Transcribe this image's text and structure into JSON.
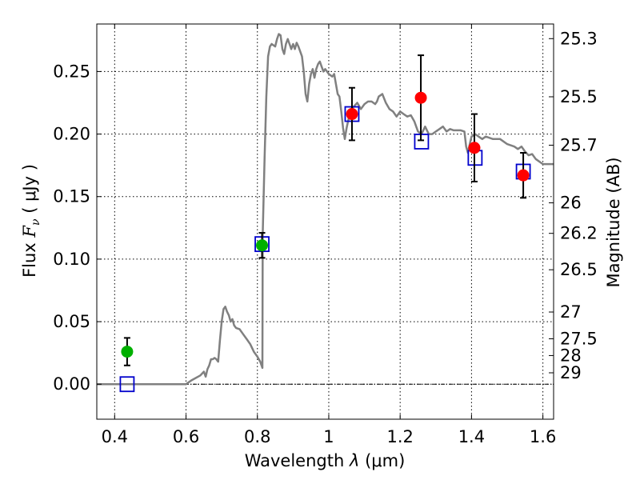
{
  "chart_data": {
    "type": "scatter",
    "xlabel_prefix": "Wavelength",
    "xlabel_symbol": "λ",
    "xlabel_unit": "(μm)",
    "ylabel_prefix": "Flux",
    "ylabel_symbol_main": "F",
    "ylabel_symbol_sub": "ν",
    "ylabel_unit": "( μJy )",
    "y2label": "Magnitude (AB)",
    "xlim": [
      0.35,
      1.63
    ],
    "ylim": [
      -0.028,
      0.288
    ],
    "x_ticks": [
      {
        "value": 0.4,
        "label": "0.4"
      },
      {
        "value": 0.6,
        "label": "0.6"
      },
      {
        "value": 0.8,
        "label": "0.8"
      },
      {
        "value": 1.0,
        "label": "1"
      },
      {
        "value": 1.2,
        "label": "1.2"
      },
      {
        "value": 1.4,
        "label": "1.4"
      },
      {
        "value": 1.6,
        "label": "1.6"
      }
    ],
    "y_ticks": [
      {
        "value": 0.0,
        "label": "0.00"
      },
      {
        "value": 0.05,
        "label": "0.05"
      },
      {
        "value": 0.1,
        "label": "0.10"
      },
      {
        "value": 0.15,
        "label": "0.15"
      },
      {
        "value": 0.2,
        "label": "0.20"
      },
      {
        "value": 0.25,
        "label": "0.25"
      }
    ],
    "mag_ticks": [
      {
        "label": "25.3",
        "flux": 0.2763
      },
      {
        "label": "25.5",
        "flux": 0.2298
      },
      {
        "label": "25.7",
        "flux": 0.1911
      },
      {
        "label": "26",
        "flux": 0.145
      },
      {
        "label": "26.2",
        "flux": 0.1206
      },
      {
        "label": "26.5",
        "flux": 0.0915
      },
      {
        "label": "27",
        "flux": 0.0577
      },
      {
        "label": "27.5",
        "flux": 0.0363
      },
      {
        "label": "28",
        "flux": 0.0229
      },
      {
        "label": "29",
        "flux": 0.0091
      }
    ],
    "grid": true,
    "colors": {
      "model": "#808080",
      "green_points": "#00b000",
      "red_points": "#ff0000",
      "model_boxes": "#0000cc",
      "errorbar": "#000000",
      "zero_line": "#000000"
    },
    "series": [
      {
        "name": "model spectrum",
        "kind": "line",
        "points": [
          [
            0.35,
            0.0
          ],
          [
            0.6,
            0.0
          ],
          [
            0.615,
            0.003
          ],
          [
            0.64,
            0.007
          ],
          [
            0.65,
            0.01
          ],
          [
            0.655,
            0.006
          ],
          [
            0.66,
            0.012
          ],
          [
            0.665,
            0.015
          ],
          [
            0.67,
            0.02
          ],
          [
            0.675,
            0.02
          ],
          [
            0.68,
            0.021
          ],
          [
            0.685,
            0.02
          ],
          [
            0.69,
            0.018
          ],
          [
            0.695,
            0.035
          ],
          [
            0.7,
            0.05
          ],
          [
            0.705,
            0.06
          ],
          [
            0.71,
            0.062
          ],
          [
            0.715,
            0.058
          ],
          [
            0.72,
            0.055
          ],
          [
            0.725,
            0.05
          ],
          [
            0.73,
            0.052
          ],
          [
            0.735,
            0.047
          ],
          [
            0.74,
            0.045
          ],
          [
            0.75,
            0.044
          ],
          [
            0.76,
            0.04
          ],
          [
            0.77,
            0.036
          ],
          [
            0.78,
            0.032
          ],
          [
            0.79,
            0.026
          ],
          [
            0.8,
            0.022
          ],
          [
            0.808,
            0.018
          ],
          [
            0.814,
            0.013
          ],
          [
            0.815,
            0.12
          ],
          [
            0.82,
            0.18
          ],
          [
            0.825,
            0.23
          ],
          [
            0.83,
            0.262
          ],
          [
            0.835,
            0.27
          ],
          [
            0.84,
            0.272
          ],
          [
            0.85,
            0.27
          ],
          [
            0.855,
            0.276
          ],
          [
            0.86,
            0.28
          ],
          [
            0.865,
            0.279
          ],
          [
            0.87,
            0.268
          ],
          [
            0.875,
            0.264
          ],
          [
            0.88,
            0.272
          ],
          [
            0.885,
            0.276
          ],
          [
            0.89,
            0.272
          ],
          [
            0.895,
            0.268
          ],
          [
            0.9,
            0.272
          ],
          [
            0.905,
            0.268
          ],
          [
            0.91,
            0.273
          ],
          [
            0.915,
            0.27
          ],
          [
            0.92,
            0.266
          ],
          [
            0.925,
            0.262
          ],
          [
            0.93,
            0.25
          ],
          [
            0.935,
            0.232
          ],
          [
            0.94,
            0.226
          ],
          [
            0.945,
            0.24
          ],
          [
            0.95,
            0.248
          ],
          [
            0.955,
            0.252
          ],
          [
            0.96,
            0.245
          ],
          [
            0.965,
            0.252
          ],
          [
            0.97,
            0.256
          ],
          [
            0.975,
            0.258
          ],
          [
            0.98,
            0.254
          ],
          [
            0.985,
            0.25
          ],
          [
            0.99,
            0.252
          ],
          [
            1.0,
            0.248
          ],
          [
            1.01,
            0.246
          ],
          [
            1.015,
            0.248
          ],
          [
            1.02,
            0.24
          ],
          [
            1.025,
            0.232
          ],
          [
            1.03,
            0.23
          ],
          [
            1.035,
            0.218
          ],
          [
            1.04,
            0.205
          ],
          [
            1.045,
            0.196
          ],
          [
            1.05,
            0.205
          ],
          [
            1.06,
            0.218
          ],
          [
            1.07,
            0.222
          ],
          [
            1.08,
            0.225
          ],
          [
            1.09,
            0.22
          ],
          [
            1.1,
            0.224
          ],
          [
            1.11,
            0.226
          ],
          [
            1.12,
            0.226
          ],
          [
            1.13,
            0.224
          ],
          [
            1.135,
            0.226
          ],
          [
            1.14,
            0.23
          ],
          [
            1.15,
            0.232
          ],
          [
            1.16,
            0.225
          ],
          [
            1.17,
            0.22
          ],
          [
            1.18,
            0.218
          ],
          [
            1.19,
            0.214
          ],
          [
            1.2,
            0.218
          ],
          [
            1.21,
            0.216
          ],
          [
            1.22,
            0.214
          ],
          [
            1.23,
            0.215
          ],
          [
            1.24,
            0.21
          ],
          [
            1.25,
            0.202
          ],
          [
            1.26,
            0.2
          ],
          [
            1.27,
            0.206
          ],
          [
            1.28,
            0.2
          ],
          [
            1.29,
            0.2
          ],
          [
            1.3,
            0.202
          ],
          [
            1.31,
            0.204
          ],
          [
            1.32,
            0.206
          ],
          [
            1.33,
            0.202
          ],
          [
            1.34,
            0.204
          ],
          [
            1.35,
            0.203
          ],
          [
            1.37,
            0.203
          ],
          [
            1.38,
            0.202
          ],
          [
            1.385,
            0.19
          ],
          [
            1.39,
            0.185
          ],
          [
            1.395,
            0.192
          ],
          [
            1.4,
            0.198
          ],
          [
            1.41,
            0.2
          ],
          [
            1.42,
            0.198
          ],
          [
            1.43,
            0.196
          ],
          [
            1.44,
            0.198
          ],
          [
            1.46,
            0.196
          ],
          [
            1.48,
            0.196
          ],
          [
            1.5,
            0.192
          ],
          [
            1.52,
            0.19
          ],
          [
            1.53,
            0.188
          ],
          [
            1.54,
            0.19
          ],
          [
            1.55,
            0.186
          ],
          [
            1.56,
            0.183
          ],
          [
            1.57,
            0.184
          ],
          [
            1.58,
            0.18
          ],
          [
            1.6,
            0.176
          ],
          [
            1.63,
            0.176
          ]
        ]
      },
      {
        "name": "model bandpass fluxes",
        "kind": "open-square",
        "x": [
          0.435,
          0.813,
          1.065,
          1.26,
          1.41,
          1.545
        ],
        "y": [
          0.0,
          0.112,
          0.216,
          0.194,
          0.181,
          0.17
        ]
      },
      {
        "name": "green observations",
        "kind": "filled-circle",
        "x": [
          0.435,
          0.813
        ],
        "y": [
          0.026,
          0.111
        ],
        "err": [
          0.011,
          0.01
        ]
      },
      {
        "name": "red observations",
        "kind": "filled-circle",
        "x": [
          1.065,
          1.258,
          1.408,
          1.545
        ],
        "y": [
          0.216,
          0.229,
          0.189,
          0.167
        ],
        "err": [
          0.021,
          0.034,
          0.027,
          0.018
        ]
      }
    ]
  }
}
